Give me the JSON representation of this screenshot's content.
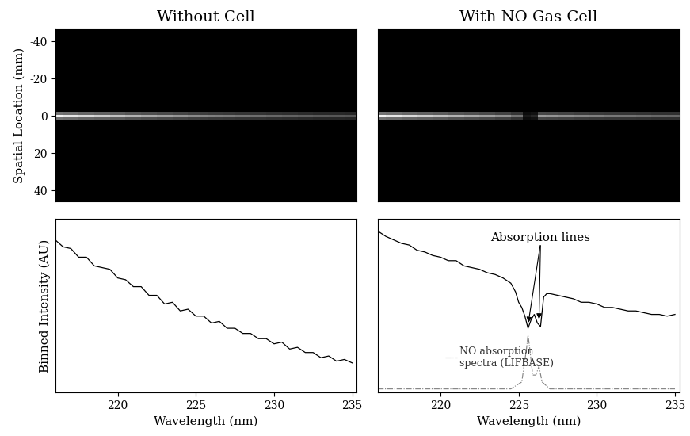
{
  "chart_data": [
    {
      "type": "heatmap",
      "title": "Without Cell",
      "ylabel": "Spatial Location (mm)",
      "xlim": [
        216,
        235.3
      ],
      "ylim": [
        46,
        -47
      ],
      "yticks": [
        -40,
        -20,
        0,
        20,
        40
      ],
      "tick_labels": "y",
      "color": "gray",
      "cell_range": [
        0,
        1
      ],
      "x": [
        216,
        217,
        218,
        219,
        220,
        221,
        222,
        223,
        224,
        225,
        225.5,
        226,
        226.5,
        227,
        228,
        229,
        230,
        231,
        232,
        233,
        234,
        235
      ],
      "y": [
        -1.5,
        0,
        1.5
      ],
      "cells": [
        [
          0.45,
          0.43,
          0.4,
          0.38,
          0.36,
          0.33,
          0.31,
          0.29,
          0.27,
          0.25,
          0.24,
          0.23,
          0.23,
          0.22,
          0.21,
          0.2,
          0.19,
          0.18,
          0.17,
          0.16,
          0.16,
          0.15
        ],
        [
          0.95,
          0.9,
          0.85,
          0.8,
          0.75,
          0.7,
          0.66,
          0.62,
          0.58,
          0.54,
          0.52,
          0.5,
          0.49,
          0.48,
          0.45,
          0.43,
          0.41,
          0.39,
          0.37,
          0.35,
          0.34,
          0.33
        ],
        [
          0.45,
          0.43,
          0.4,
          0.38,
          0.36,
          0.33,
          0.31,
          0.29,
          0.27,
          0.25,
          0.24,
          0.23,
          0.23,
          0.22,
          0.21,
          0.2,
          0.19,
          0.18,
          0.17,
          0.16,
          0.16,
          0.15
        ]
      ]
    },
    {
      "type": "heatmap",
      "title": "With NO Gas Cell",
      "xlim": [
        216,
        235.3
      ],
      "ylim": [
        46,
        -47
      ],
      "tick_labels": false,
      "color": "gray",
      "cell_range": [
        0,
        1
      ],
      "x": [
        216,
        217,
        218,
        219,
        220,
        221,
        222,
        223,
        224,
        225,
        225.5,
        226,
        226.5,
        227,
        228,
        229,
        230,
        231,
        232,
        233,
        234,
        235
      ],
      "y": [
        -1.5,
        0,
        1.5
      ],
      "cells": [
        [
          0.45,
          0.43,
          0.4,
          0.38,
          0.36,
          0.33,
          0.31,
          0.29,
          0.26,
          0.21,
          0.05,
          0.07,
          0.28,
          0.27,
          0.26,
          0.24,
          0.23,
          0.22,
          0.21,
          0.2,
          0.19,
          0.19
        ],
        [
          0.95,
          0.9,
          0.85,
          0.8,
          0.75,
          0.7,
          0.66,
          0.62,
          0.56,
          0.45,
          0.1,
          0.15,
          0.6,
          0.58,
          0.55,
          0.52,
          0.5,
          0.47,
          0.45,
          0.43,
          0.41,
          0.4
        ],
        [
          0.45,
          0.43,
          0.4,
          0.38,
          0.36,
          0.33,
          0.31,
          0.29,
          0.26,
          0.21,
          0.05,
          0.07,
          0.28,
          0.27,
          0.26,
          0.24,
          0.23,
          0.22,
          0.21,
          0.2,
          0.19,
          0.19
        ]
      ]
    },
    {
      "type": "line",
      "ylabel": "Binned Intensity (AU)",
      "xlabel": "Wavelength (nm)",
      "xlim": [
        216,
        235.3
      ],
      "ylim": [
        0,
        1
      ],
      "xticks": [
        220,
        225,
        230,
        235
      ],
      "tick_labels": "x",
      "series": [
        {
          "color": "#000000",
          "line_style": "solid",
          "x": [
            216,
            216.5,
            217,
            217.5,
            218,
            218.5,
            219,
            219.5,
            220,
            220.5,
            221,
            221.5,
            222,
            222.5,
            223,
            223.5,
            224,
            224.5,
            225,
            225.5,
            226,
            226.5,
            227,
            227.5,
            228,
            228.5,
            229,
            229.5,
            230,
            230.5,
            231,
            231.5,
            232,
            232.5,
            233,
            233.5,
            234,
            234.5,
            235
          ],
          "values": [
            0.88,
            0.84,
            0.83,
            0.78,
            0.78,
            0.73,
            0.72,
            0.71,
            0.66,
            0.65,
            0.61,
            0.61,
            0.56,
            0.56,
            0.51,
            0.52,
            0.47,
            0.48,
            0.44,
            0.44,
            0.4,
            0.41,
            0.37,
            0.37,
            0.34,
            0.34,
            0.31,
            0.31,
            0.28,
            0.29,
            0.25,
            0.26,
            0.23,
            0.23,
            0.2,
            0.21,
            0.18,
            0.19,
            0.17
          ]
        }
      ]
    },
    {
      "type": "line",
      "xlabel": "Wavelength (nm)",
      "xlim": [
        216,
        235.3
      ],
      "ylim": [
        0,
        1
      ],
      "xticks": [
        220,
        225,
        230,
        235
      ],
      "tick_labels": "x",
      "series": [
        {
          "color": "#000000",
          "line_style": "solid",
          "x": [
            216,
            216.5,
            217,
            217.5,
            218,
            218.5,
            219,
            219.5,
            220,
            220.5,
            221,
            221.5,
            222,
            222.5,
            223,
            223.5,
            224,
            224.5,
            224.8,
            225,
            225.2,
            225.4,
            225.6,
            225.8,
            226,
            226.2,
            226.4,
            226.6,
            226.8,
            227,
            227.5,
            228,
            228.5,
            229,
            229.5,
            230,
            230.5,
            231,
            231.5,
            232,
            232.5,
            233,
            233.5,
            234,
            234.5,
            235
          ],
          "values": [
            0.93,
            0.9,
            0.88,
            0.86,
            0.85,
            0.82,
            0.81,
            0.79,
            0.78,
            0.76,
            0.76,
            0.73,
            0.72,
            0.71,
            0.69,
            0.68,
            0.66,
            0.63,
            0.58,
            0.52,
            0.49,
            0.44,
            0.37,
            0.42,
            0.45,
            0.4,
            0.38,
            0.55,
            0.57,
            0.57,
            0.56,
            0.55,
            0.54,
            0.52,
            0.52,
            0.51,
            0.49,
            0.49,
            0.48,
            0.47,
            0.47,
            0.46,
            0.45,
            0.45,
            0.44,
            0.45
          ]
        },
        {
          "color": "#808080",
          "line_style": "dashdot",
          "x": [
            216,
            224.5,
            225.2,
            225.5,
            225.6,
            225.7,
            225.9,
            226.1,
            226.3,
            226.5,
            227,
            235
          ],
          "values": [
            0.02,
            0.02,
            0.06,
            0.25,
            0.33,
            0.26,
            0.1,
            0.1,
            0.15,
            0.06,
            0.02,
            0.02
          ]
        }
      ],
      "annotations": [
        {
          "text": "Absorption lines",
          "x": 226.4,
          "y": 0.86,
          "targets": [
            [
              225.6,
              0.39
            ],
            [
              226.3,
              0.41
            ]
          ]
        },
        {
          "text": "NO absorption\nspectra (LIFBASE)",
          "x": 221.2,
          "y": 0.2
        }
      ]
    }
  ]
}
